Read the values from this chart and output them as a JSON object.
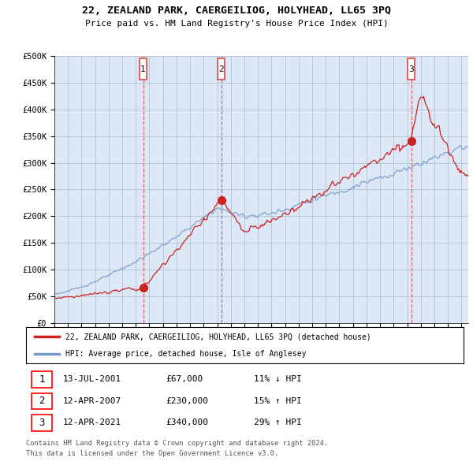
{
  "title": "22, ZEALAND PARK, CAERGEILIOG, HOLYHEAD, LL65 3PQ",
  "subtitle": "Price paid vs. HM Land Registry's House Price Index (HPI)",
  "ylabel_values": [
    "£0",
    "£50K",
    "£100K",
    "£150K",
    "£200K",
    "£250K",
    "£300K",
    "£350K",
    "£400K",
    "£450K",
    "£500K"
  ],
  "ylim": [
    0,
    500000
  ],
  "xlim_start": 1995.0,
  "xlim_end": 2025.5,
  "sale_dates": [
    2001.54,
    2007.29,
    2021.29
  ],
  "sale_prices": [
    67000,
    230000,
    340000
  ],
  "sale_labels": [
    "1",
    "2",
    "3"
  ],
  "sale_date_strs": [
    "13-JUL-2001",
    "12-APR-2007",
    "12-APR-2021"
  ],
  "sale_price_strs": [
    "£67,000",
    "£230,000",
    "£340,000"
  ],
  "sale_pct_strs": [
    "11% ↓ HPI",
    "15% ↑ HPI",
    "29% ↑ HPI"
  ],
  "vline_color": "#dd4444",
  "hpi_color": "#7799cc",
  "price_color": "#cc2222",
  "legend_label_price": "22, ZEALAND PARK, CAERGEILIOG, HOLYHEAD, LL65 3PQ (detached house)",
  "legend_label_hpi": "HPI: Average price, detached house, Isle of Anglesey",
  "footer1": "Contains HM Land Registry data © Crown copyright and database right 2024.",
  "footer2": "This data is licensed under the Open Government Licence v3.0.",
  "background_color": "#dce8f5",
  "grid_color": "#aabbcc",
  "title_fontsize": 9.5,
  "subtitle_fontsize": 8
}
